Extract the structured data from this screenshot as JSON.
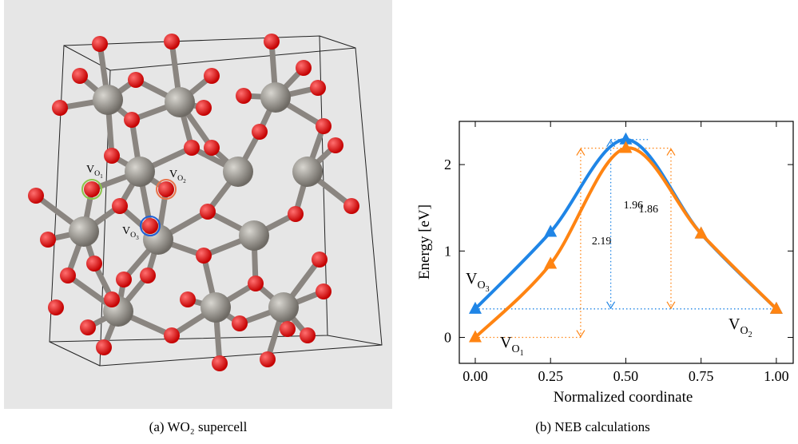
{
  "left_panel": {
    "caption": "(a) WO₂ supercell",
    "vacancy_labels": [
      {
        "main": "V",
        "sub": "O",
        "index": "1",
        "color": "#8bc34a"
      },
      {
        "main": "V",
        "sub": "O",
        "index": "2",
        "color": "#e8734a"
      },
      {
        "main": "V",
        "sub": "O",
        "index": "3",
        "color": "#1f5fd6"
      }
    ]
  },
  "chart_data": {
    "type": "line",
    "caption": "(b) NEB calculations",
    "xlabel": "Normalized coordinate",
    "ylabel": "Energy [eV]",
    "x": [
      0,
      0.25,
      0.5,
      0.75,
      1
    ],
    "series": [
      {
        "color": "#1f85e6",
        "values": [
          0.33,
          1.22,
          2.29,
          1.2,
          0.33
        ]
      },
      {
        "color": "#ff8412",
        "values": [
          0,
          0.85,
          2.19,
          1.2,
          0.33
        ]
      }
    ],
    "xlim": [
      -0.053,
      1.056
    ],
    "ylim": [
      -0.3,
      2.5
    ],
    "xticks": [
      {
        "value": 0,
        "label": "0.00"
      },
      {
        "value": 0.25,
        "label": "0.25"
      },
      {
        "value": 0.5,
        "label": "0.50"
      },
      {
        "value": 0.75,
        "label": "0.75"
      },
      {
        "value": 1,
        "label": "1.00"
      }
    ],
    "yticks": [
      0,
      1,
      2
    ],
    "endpoint_labels": [
      {
        "main": "V",
        "sub": "O",
        "index": "3"
      },
      {
        "main": "V",
        "sub": "O",
        "index": "1"
      },
      {
        "main": "V",
        "sub": "O",
        "index": "2"
      }
    ],
    "barrier_labels": [
      "2.19",
      "1.96",
      "1.86"
    ]
  }
}
